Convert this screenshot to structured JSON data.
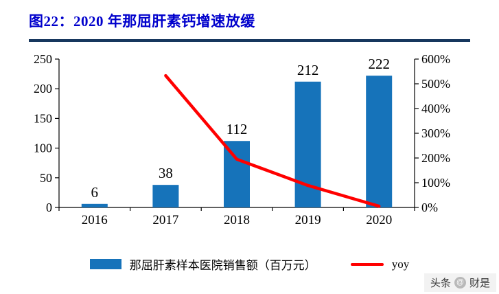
{
  "title": "图22：2020 年那屈肝素钙增速放缓",
  "colors": {
    "bar": "#1673BA",
    "line": "#FF0000",
    "title_blue": "#0000CC",
    "rule_navy": "#17375E"
  },
  "chart_data": {
    "type": "bar",
    "combo": "bar+line",
    "title": "图22：2020 年那屈肝素钙增速放缓",
    "categories": [
      "2016",
      "2017",
      "2018",
      "2019",
      "2020"
    ],
    "series": [
      {
        "name": "那屈肝素样本医院销售额（百万元）",
        "type": "bar",
        "axis": "left",
        "values": [
          6,
          38,
          112,
          212,
          222
        ]
      },
      {
        "name": "yoy",
        "type": "line",
        "axis": "right",
        "unit": "%",
        "values": [
          null,
          533,
          195,
          89,
          5
        ]
      }
    ],
    "bar_labels": [
      "6",
      "38",
      "112",
      "212",
      "222"
    ],
    "left_axis": {
      "min": 0,
      "max": 250,
      "step": 50,
      "ticks": [
        "0",
        "50",
        "100",
        "150",
        "200",
        "250"
      ]
    },
    "right_axis": {
      "min": 0,
      "max": 600,
      "step": 100,
      "ticks": [
        "0%",
        "100%",
        "200%",
        "300%",
        "400%",
        "500%",
        "600%"
      ]
    },
    "legend": [
      "那屈肝素样本医院销售额（百万元）",
      "yoy"
    ],
    "legend_position": "bottom",
    "grid": false
  },
  "watermark": {
    "platform": "头条",
    "at": "@",
    "account": "财是"
  }
}
